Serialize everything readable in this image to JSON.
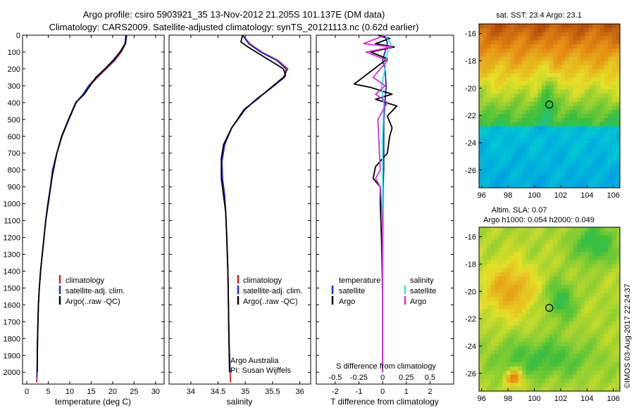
{
  "header": {
    "title_line1": "Argo profile: csiro 5903921_35 13-Nov-2012 21.205S 101.137E (DM data)",
    "title_line2": "Climatology: CARS2009. Satellite-adjusted climatology: synTS_20121113.nc (0.62d earlier)"
  },
  "colors": {
    "climatology": "#d62020",
    "satellite": "#1f2ad6",
    "argo": "#000000",
    "satellite_salinity": "#2ee6e6",
    "argo_salinity": "#e02be0"
  },
  "legend": {
    "climatology": "climatology",
    "satellite": "satellite-adj. clim.",
    "argo": "Argo(..raw -QC)"
  },
  "diff_legend": {
    "temperature_head": "temperature",
    "salinity_head": "salinity",
    "satellite": "satellite",
    "argo": "Argo"
  },
  "annotations": {
    "argo_australia": "Argo Australia",
    "pi": "PI: Susan Wijffels",
    "s_diff_label": "S difference from climatology",
    "imos_stamp": "©IMOS 03-Aug-2017 22:24:37"
  },
  "maps": {
    "sst_title": "sat. SST: 23.4  Argo: 23.1",
    "sla_title1": "Altim. SLA: 0.07",
    "sla_title2": "Argo h1000: 0.054 h2000: 0.049",
    "float_lon": 101.137,
    "float_lat": -21.205,
    "xlim": [
      95.8,
      106.5
    ],
    "ylim": [
      -27.3,
      -15.3
    ],
    "xticks": [
      96,
      98,
      100,
      102,
      104,
      106
    ],
    "yticks": [
      -16,
      -18,
      -20,
      -22,
      -24,
      -26
    ],
    "xtick_labels": [
      "96",
      "98",
      "100",
      "102",
      "104",
      "106"
    ],
    "ytick_labels": [
      "-16",
      "-18",
      "-20",
      "-22",
      "-24",
      "-26"
    ]
  },
  "chart_data": [
    {
      "type": "line",
      "panel": "temperature",
      "xlabel": "temperature (deg C)",
      "ylabel": "",
      "xlim": [
        -1,
        32
      ],
      "ylim": [
        2070,
        0
      ],
      "xticks": [
        0,
        5,
        10,
        15,
        20,
        25,
        30
      ],
      "xtick_labels": [
        "0",
        "5",
        "10",
        "15",
        "20",
        "25",
        "30"
      ],
      "yticks": [
        0,
        100,
        200,
        300,
        400,
        500,
        600,
        700,
        800,
        900,
        1000,
        1100,
        1200,
        1300,
        1400,
        1500,
        1600,
        1700,
        1800,
        1900,
        2000
      ],
      "ytick_labels": [
        "0",
        "100",
        "200",
        "300",
        "400",
        "500",
        "600",
        "700",
        "800",
        "900",
        "1000",
        "1100",
        "1200",
        "1300",
        "1400",
        "1500",
        "1600",
        "1700",
        "1800",
        "1900",
        "2000"
      ],
      "series": [
        {
          "name": "climatology",
          "x": [
            23.3,
            23.0,
            22.0,
            20.5,
            18.5,
            16.5,
            14.6,
            13.2,
            11.5,
            9.8,
            8.2,
            7.0,
            6.0,
            5.5,
            4.9,
            4.4,
            4.0,
            3.6,
            3.2,
            2.9,
            2.7,
            2.5,
            2.4,
            2.3
          ],
          "y": [
            0,
            50,
            100,
            150,
            200,
            250,
            300,
            350,
            400,
            500,
            600,
            700,
            800,
            900,
            1000,
            1100,
            1200,
            1300,
            1400,
            1500,
            1600,
            1800,
            2000,
            2060
          ]
        },
        {
          "name": "satellite-adj. clim.",
          "x": [
            23.2,
            23.0,
            21.8,
            20.3,
            18.3,
            16.3,
            14.4,
            13.1,
            11.5,
            9.8,
            8.2,
            7.0,
            6.0,
            5.5,
            4.9,
            4.4,
            4.0,
            3.6,
            3.2,
            2.9,
            2.7,
            2.5,
            2.4,
            2.3
          ],
          "y": [
            0,
            50,
            100,
            150,
            200,
            250,
            300,
            350,
            400,
            500,
            600,
            700,
            800,
            900,
            1000,
            1100,
            1200,
            1300,
            1400,
            1500,
            1600,
            1800,
            2000,
            2030
          ]
        },
        {
          "name": "Argo(..raw -QC)",
          "x": [
            23.1,
            22.9,
            21.7,
            20.1,
            18.2,
            16.1,
            15.0,
            13.4,
            11.4,
            9.7,
            8.1,
            7.0,
            6.2,
            5.9,
            5.0,
            4.4,
            4.0,
            3.6,
            3.2,
            2.9,
            2.7,
            2.5,
            2.4
          ],
          "y": [
            0,
            50,
            100,
            150,
            200,
            250,
            290,
            350,
            400,
            500,
            600,
            700,
            800,
            840,
            1000,
            1100,
            1200,
            1300,
            1400,
            1500,
            1600,
            1800,
            2000
          ]
        }
      ]
    },
    {
      "type": "line",
      "panel": "salinity",
      "xlabel": "salinity",
      "xlim": [
        33.6,
        36.2
      ],
      "ylim": [
        2070,
        0
      ],
      "xticks": [
        34,
        34.5,
        35,
        35.5,
        36
      ],
      "xtick_labels": [
        "34",
        "34.5",
        "35",
        "35.5",
        "36"
      ],
      "series": [
        {
          "name": "climatology",
          "x": [
            34.95,
            35.08,
            35.3,
            35.6,
            35.78,
            35.7,
            35.45,
            35.2,
            35.0,
            34.75,
            34.62,
            34.57,
            34.58,
            34.62,
            34.64,
            34.66,
            34.68,
            34.69,
            34.7,
            34.71,
            34.72,
            34.73
          ],
          "y": [
            0,
            50,
            100,
            150,
            200,
            250,
            320,
            380,
            440,
            550,
            650,
            750,
            850,
            950,
            1050,
            1200,
            1400,
            1600,
            1800,
            1900,
            2000,
            2060
          ]
        },
        {
          "name": "satellite-adj. clim.",
          "x": [
            34.95,
            35.06,
            35.28,
            35.58,
            35.75,
            35.72,
            35.45,
            35.2,
            35.0,
            34.75,
            34.62,
            34.57,
            34.58,
            34.62,
            34.64,
            34.66,
            34.68,
            34.69,
            34.7,
            34.71,
            34.72
          ],
          "y": [
            0,
            50,
            100,
            150,
            200,
            250,
            320,
            380,
            440,
            550,
            650,
            750,
            850,
            950,
            1050,
            1200,
            1400,
            1600,
            1800,
            1900,
            2000
          ]
        },
        {
          "name": "Argo(..raw -QC)",
          "x": [
            34.95,
            34.92,
            35.05,
            35.2,
            35.45,
            35.7,
            35.74,
            35.55,
            35.4,
            35.22,
            34.98,
            34.75,
            34.6,
            34.56,
            34.56,
            34.6,
            34.64,
            34.66,
            34.68,
            34.69,
            34.7,
            34.71
          ],
          "y": [
            0,
            40,
            70,
            100,
            150,
            200,
            240,
            290,
            330,
            380,
            440,
            550,
            650,
            730,
            850,
            950,
            1050,
            1200,
            1400,
            1600,
            1800,
            2000
          ]
        }
      ]
    },
    {
      "type": "line",
      "panel": "difference",
      "xlabel": "T difference from climatology",
      "xlim": [
        -2.8,
        3.0
      ],
      "ylim": [
        2070,
        0
      ],
      "xticks": [
        -2,
        -1,
        0,
        1,
        2
      ],
      "xtick_labels": [
        "-2",
        "-1",
        "0",
        "1",
        "2"
      ],
      "s_xticks": [
        -0.5,
        -0.25,
        0,
        0.25,
        0.5
      ],
      "s_xtick_labels": [
        "-0.5",
        "-0.25",
        "0",
        "0.25",
        "0.5"
      ],
      "s_scale": 4,
      "series": [
        {
          "name": "temperature satellite",
          "x": [
            0.1,
            0.2,
            0.1,
            0.0,
            0.1,
            0.15,
            0.1,
            0.05,
            0.05,
            0.05,
            0.02,
            0.01,
            0.0,
            0.0,
            0.0
          ],
          "y": [
            0,
            50,
            100,
            150,
            200,
            300,
            400,
            500,
            700,
            800,
            900,
            1100,
            1400,
            1700,
            2000
          ]
        },
        {
          "name": "temperature Argo",
          "x": [
            -0.2,
            0.3,
            -0.3,
            0.5,
            -0.5,
            0.2,
            -1.2,
            -0.5,
            0.4,
            -0.3,
            0.6,
            0.2,
            0.4,
            0.3,
            0.2,
            -0.3,
            -0.4,
            -0.1,
            -0.1,
            -0.05,
            -0.02,
            0.0,
            0.0,
            0.0
          ],
          "y": [
            0,
            20,
            50,
            70,
            100,
            140,
            290,
            310,
            350,
            380,
            420,
            480,
            550,
            600,
            700,
            780,
            850,
            900,
            1000,
            1200,
            1400,
            1600,
            1800,
            2000
          ]
        },
        {
          "name": "salinity satellite",
          "x": [
            0.1,
            0.35,
            0.2,
            0.1,
            -0.05,
            0.05,
            0.0,
            0.0,
            0.0,
            0.0
          ],
          "y": [
            0,
            50,
            100,
            200,
            300,
            400,
            600,
            900,
            1400,
            2000
          ]
        },
        {
          "name": "salinity Argo",
          "x": [
            0.1,
            -0.8,
            0.4,
            -0.7,
            0.2,
            -0.4,
            0.1,
            -0.3,
            0.2,
            -0.2,
            -0.1,
            -0.3,
            -0.1,
            0.0,
            0.0,
            0.0
          ],
          "y": [
            0,
            50,
            70,
            100,
            150,
            250,
            300,
            350,
            400,
            500,
            800,
            850,
            900,
            1100,
            1500,
            2000
          ]
        }
      ]
    }
  ]
}
